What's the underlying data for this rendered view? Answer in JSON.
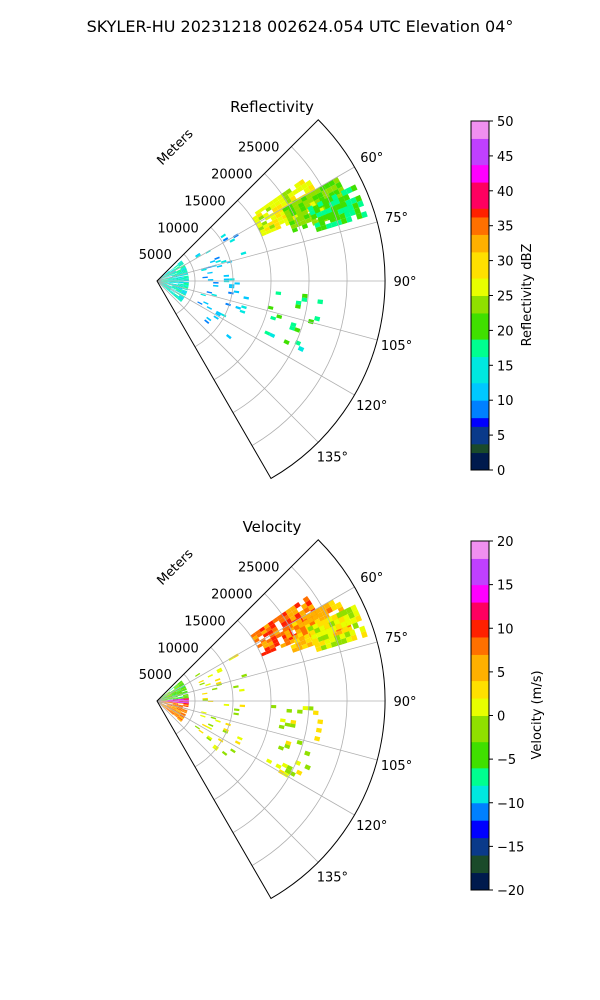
{
  "figure": {
    "title": "SKYLER-HU  20231218  002624.054 UTC Elevation 04°"
  },
  "chart_data": [
    {
      "type": "heatmap",
      "subtype": "polar-sector-ppi",
      "title": "Reflectivity",
      "radial_axis_label": "Meters",
      "radial_range_m": [
        0,
        30000
      ],
      "radial_ticks": [
        5000,
        10000,
        15000,
        20000,
        25000
      ],
      "azimuth_range_deg": [
        45,
        150
      ],
      "azimuth_ticks": [
        60,
        75,
        90,
        105,
        120,
        135
      ],
      "azimuth_tick_labels": [
        "60°",
        "75°",
        "90°",
        "105°",
        "120°",
        "135°"
      ],
      "grid": true,
      "colorbar": {
        "label": "Reflectivity dBZ",
        "range": [
          0,
          50
        ],
        "ticks": [
          0,
          5,
          10,
          15,
          20,
          25,
          30,
          35,
          40,
          45,
          50
        ],
        "tick_labels": [
          "0",
          "5",
          "10",
          "15",
          "20",
          "25",
          "30",
          "35",
          "40",
          "45",
          "50"
        ],
        "stops": [
          {
            "v": 0,
            "c": "#001a4d"
          },
          {
            "v": 2,
            "c": "#1a4a2a"
          },
          {
            "v": 4,
            "c": "#0a3a8a"
          },
          {
            "v": 6,
            "c": "#0000ff"
          },
          {
            "v": 8,
            "c": "#0080ff"
          },
          {
            "v": 10,
            "c": "#00c8ff"
          },
          {
            "v": 13,
            "c": "#00e8e0"
          },
          {
            "v": 16,
            "c": "#00ff90"
          },
          {
            "v": 19,
            "c": "#40e000"
          },
          {
            "v": 22,
            "c": "#90e000"
          },
          {
            "v": 25,
            "c": "#e8ff00"
          },
          {
            "v": 28,
            "c": "#ffe000"
          },
          {
            "v": 31,
            "c": "#ffb000"
          },
          {
            "v": 34,
            "c": "#ff7000"
          },
          {
            "v": 36,
            "c": "#ff2000"
          },
          {
            "v": 38,
            "c": "#ff0060"
          },
          {
            "v": 41,
            "c": "#ff00ff"
          },
          {
            "v": 44,
            "c": "#c040ff"
          },
          {
            "v": 47,
            "c": "#f090f0"
          },
          {
            "v": 50,
            "c": "#ffe8ff"
          }
        ]
      },
      "echo_regions": [
        {
          "az": [
            55,
            66
          ],
          "r": [
            15000,
            24000
          ],
          "value": 27
        },
        {
          "az": [
            60,
            70
          ],
          "r": [
            19000,
            27000
          ],
          "value": 22
        },
        {
          "az": [
            64,
            73
          ],
          "r": [
            22000,
            28500
          ],
          "value": 19
        },
        {
          "az": [
            50,
            130
          ],
          "r": [
            0,
            4000
          ],
          "value": 15
        },
        {
          "az": [
            55,
            130
          ],
          "r": [
            6000,
            12000
          ],
          "value": 12,
          "sparse": true
        },
        {
          "az": [
            92,
            120
          ],
          "r": [
            15000,
            22000
          ],
          "value": 18,
          "sparse": true
        }
      ]
    },
    {
      "type": "heatmap",
      "subtype": "polar-sector-ppi",
      "title": "Velocity",
      "radial_axis_label": "Meters",
      "radial_range_m": [
        0,
        30000
      ],
      "radial_ticks": [
        5000,
        10000,
        15000,
        20000,
        25000
      ],
      "azimuth_range_deg": [
        45,
        150
      ],
      "azimuth_ticks": [
        60,
        75,
        90,
        105,
        120,
        135
      ],
      "azimuth_tick_labels": [
        "60°",
        "75°",
        "90°",
        "105°",
        "120°",
        "135°"
      ],
      "grid": true,
      "colorbar": {
        "label": "Velocity (m/s)",
        "range": [
          -20,
          20
        ],
        "ticks": [
          -20,
          -15,
          -10,
          -5,
          0,
          5,
          10,
          15,
          20
        ],
        "tick_labels": [
          "−20",
          "−15",
          "−10",
          "−5",
          "0",
          "5",
          "10",
          "15",
          "20"
        ],
        "stops": [
          {
            "v": -20,
            "c": "#001a4d"
          },
          {
            "v": -18,
            "c": "#1a4a2a"
          },
          {
            "v": -16,
            "c": "#0a3a8a"
          },
          {
            "v": -14,
            "c": "#0000ff"
          },
          {
            "v": -12,
            "c": "#0080ff"
          },
          {
            "v": -10,
            "c": "#00e8e0"
          },
          {
            "v": -8,
            "c": "#00ff90"
          },
          {
            "v": -6,
            "c": "#40e000"
          },
          {
            "v": -3,
            "c": "#90e000"
          },
          {
            "v": 0,
            "c": "#e8ff00"
          },
          {
            "v": 2,
            "c": "#ffe000"
          },
          {
            "v": 4,
            "c": "#ffb000"
          },
          {
            "v": 7,
            "c": "#ff7000"
          },
          {
            "v": 9,
            "c": "#ff2000"
          },
          {
            "v": 11,
            "c": "#ff0060"
          },
          {
            "v": 13,
            "c": "#ff00ff"
          },
          {
            "v": 15,
            "c": "#c040ff"
          },
          {
            "v": 18,
            "c": "#f090f0"
          },
          {
            "v": 20,
            "c": "#ffe8ff"
          }
        ]
      },
      "echo_regions": [
        {
          "az": [
            55,
            66
          ],
          "r": [
            15000,
            24000
          ],
          "value": 8
        },
        {
          "az": [
            60,
            70
          ],
          "r": [
            19000,
            27000
          ],
          "value": 5
        },
        {
          "az": [
            64,
            73
          ],
          "r": [
            22000,
            28500
          ],
          "value": 1
        },
        {
          "az": [
            50,
            85
          ],
          "r": [
            0,
            4000
          ],
          "value": -4
        },
        {
          "az": [
            85,
            95
          ],
          "r": [
            0,
            4000
          ],
          "value": 14
        },
        {
          "az": [
            95,
            130
          ],
          "r": [
            0,
            4000
          ],
          "value": 7
        },
        {
          "az": [
            55,
            130
          ],
          "r": [
            6000,
            12000
          ],
          "value": 1,
          "sparse": true
        },
        {
          "az": [
            92,
            120
          ],
          "r": [
            15000,
            22000
          ],
          "value": 0,
          "sparse": true
        }
      ]
    }
  ]
}
